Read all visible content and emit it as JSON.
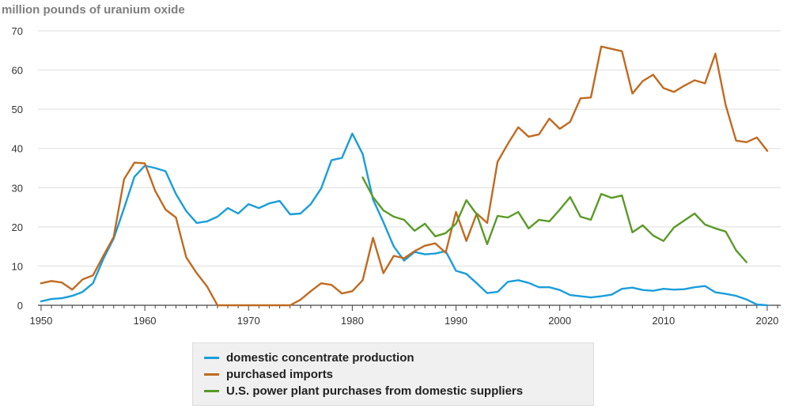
{
  "chart_data": {
    "type": "line",
    "title": "",
    "ylabel": "million pounds of uranium oxide",
    "xlabel": "",
    "xlim": [
      1949.7,
      2021.3
    ],
    "ylim": [
      0,
      70
    ],
    "x_ticks": [
      "1950",
      "1960",
      "1970",
      "1980",
      "1990",
      "2000",
      "2010",
      "2020"
    ],
    "y_ticks": [
      "0",
      "10",
      "20",
      "30",
      "40",
      "50",
      "60",
      "70"
    ],
    "grid": "horizontal",
    "legend_position": "bottom",
    "series": [
      {
        "name": "domestic concentrate production",
        "color": "#1a9ddb",
        "x": [
          1950,
          1951,
          1952,
          1953,
          1954,
          1955,
          1956,
          1957,
          1958,
          1959,
          1960,
          1961,
          1962,
          1963,
          1964,
          1965,
          1966,
          1967,
          1968,
          1969,
          1970,
          1971,
          1972,
          1973,
          1974,
          1975,
          1976,
          1977,
          1978,
          1979,
          1980,
          1981,
          1982,
          1983,
          1984,
          1985,
          1986,
          1987,
          1988,
          1989,
          1990,
          1991,
          1992,
          1993,
          1994,
          1995,
          1996,
          1997,
          1998,
          1999,
          2000,
          2001,
          2002,
          2003,
          2004,
          2005,
          2006,
          2007,
          2008,
          2009,
          2010,
          2011,
          2012,
          2013,
          2014,
          2015,
          2016,
          2017,
          2018,
          2019,
          2020
        ],
        "values": [
          1.0,
          1.6,
          1.8,
          2.4,
          3.4,
          5.6,
          11.8,
          17.0,
          24.8,
          32.8,
          35.6,
          35.0,
          34.2,
          28.4,
          24.0,
          21.0,
          21.4,
          22.6,
          24.8,
          23.4,
          25.8,
          24.8,
          26.0,
          26.6,
          23.2,
          23.4,
          25.8,
          29.8,
          37.0,
          37.6,
          43.8,
          38.6,
          27.0,
          21.2,
          15.0,
          11.4,
          13.6,
          13.0,
          13.2,
          13.8,
          8.8,
          8.0,
          5.6,
          3.1,
          3.4,
          6.0,
          6.4,
          5.7,
          4.6,
          4.6,
          3.9,
          2.6,
          2.3,
          2.0,
          2.3,
          2.7,
          4.2,
          4.5,
          3.9,
          3.7,
          4.2,
          4.0,
          4.1,
          4.6,
          4.9,
          3.3,
          2.9,
          2.4,
          1.5,
          0.2,
          0.0
        ]
      },
      {
        "name": "purchased imports",
        "color": "#c06a21",
        "x": [
          1950,
          1951,
          1952,
          1953,
          1954,
          1955,
          1956,
          1957,
          1958,
          1959,
          1960,
          1961,
          1962,
          1963,
          1964,
          1965,
          1966,
          1967,
          1968,
          1969,
          1970,
          1971,
          1972,
          1973,
          1974,
          1975,
          1976,
          1977,
          1978,
          1979,
          1980,
          1981,
          1982,
          1983,
          1984,
          1985,
          1986,
          1987,
          1988,
          1989,
          1990,
          1991,
          1992,
          1993,
          1994,
          1995,
          1996,
          1997,
          1998,
          1999,
          2000,
          2001,
          2002,
          2003,
          2004,
          2005,
          2006,
          2007,
          2008,
          2009,
          2010,
          2011,
          2012,
          2013,
          2014,
          2015,
          2016,
          2017,
          2018,
          2019,
          2020
        ],
        "values": [
          5.6,
          6.2,
          5.8,
          4.0,
          6.6,
          7.6,
          12.6,
          17.4,
          32.2,
          36.4,
          36.2,
          29.2,
          24.4,
          22.4,
          12.2,
          8.2,
          4.8,
          0.0,
          0.0,
          0.0,
          0.0,
          0.0,
          0.0,
          0.0,
          0.0,
          1.4,
          3.6,
          5.6,
          5.2,
          3.0,
          3.6,
          6.4,
          17.2,
          8.2,
          12.6,
          12.0,
          13.8,
          15.2,
          15.8,
          13.4,
          23.8,
          16.4,
          23.4,
          21.0,
          36.6,
          41.2,
          45.4,
          43.0,
          43.6,
          47.6,
          45.0,
          46.8,
          52.8,
          53.0,
          66.0,
          65.4,
          64.8,
          54.0,
          57.2,
          58.8,
          55.4,
          54.4,
          56.0,
          57.4,
          56.6,
          64.2,
          51.0,
          42.0,
          41.6,
          42.8,
          39.4
        ]
      },
      {
        "name": "U.S. power plant purchases from domestic suppliers",
        "color": "#5a9a28",
        "x": [
          1981,
          1982,
          1983,
          1984,
          1985,
          1986,
          1987,
          1988,
          1989,
          1990,
          1991,
          1992,
          1993,
          1994,
          1995,
          1996,
          1997,
          1998,
          1999,
          2000,
          2001,
          2002,
          2003,
          2004,
          2005,
          2006,
          2007,
          2008,
          2009,
          2010,
          2011,
          2012,
          2013,
          2014,
          2015,
          2016,
          2017,
          2018
        ],
        "values": [
          32.6,
          27.6,
          24.2,
          22.6,
          21.8,
          19.0,
          20.8,
          17.6,
          18.4,
          20.8,
          26.8,
          23.2,
          15.6,
          22.8,
          22.4,
          23.8,
          19.6,
          21.8,
          21.4,
          24.4,
          27.6,
          22.6,
          21.8,
          28.4,
          27.4,
          28.0,
          18.6,
          20.4,
          17.8,
          16.4,
          19.8,
          21.6,
          23.4,
          20.6,
          19.6,
          18.8,
          14.0,
          11.0
        ]
      }
    ]
  }
}
